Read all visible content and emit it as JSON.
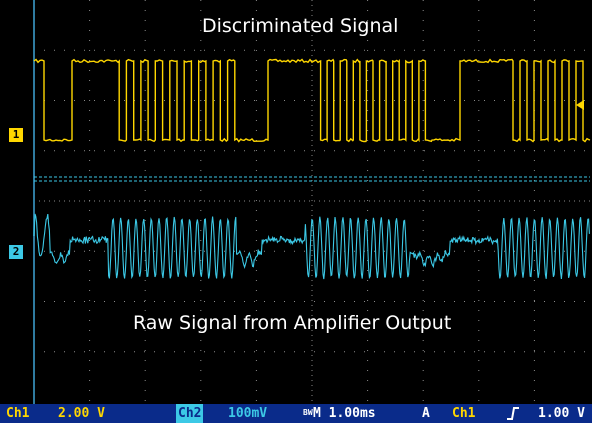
{
  "screen": {
    "ch1_caption": "Discriminated Signal",
    "ch2_caption": "Raw Signal from Amplifier Output",
    "ch1_marker": "1",
    "ch2_marker": "2"
  },
  "status_bar": {
    "ch1_label": "Ch1",
    "ch1_scale": "2.00 V",
    "ch2_label": "Ch2",
    "ch2_scale": "100mV",
    "bw_limit": "BW",
    "timebase": "M 1.00ms",
    "trigger_mode": "A",
    "trigger_source": "Ch1",
    "trigger_slope_icon": "rising-edge-icon",
    "trigger_level": "1.00 V"
  },
  "colors": {
    "ch1": "#ffd700",
    "ch2": "#3cc9e6",
    "grid": "#8a8a8a",
    "background": "#000000",
    "status_bar": "#0a2b8a"
  }
}
